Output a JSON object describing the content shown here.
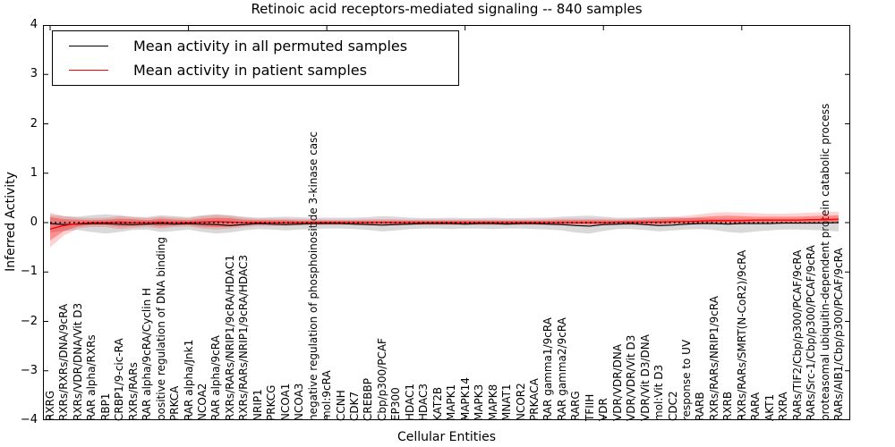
{
  "figure": {
    "title": "Retinoic acid receptors-mediated signaling -- 840 samples",
    "xlabel": "Cellular Entities",
    "ylabel": "Inferred Activity"
  },
  "legend": {
    "items": [
      {
        "label": "Mean activity in all permuted samples",
        "color": "#000000"
      },
      {
        "label": "Mean activity in patient samples",
        "color": "#ff0000"
      }
    ]
  },
  "chart_data": {
    "type": "line",
    "title": "Retinoic acid receptors-mediated signaling -- 840 samples",
    "xlabel": "Cellular Entities",
    "ylabel": "Inferred Activity",
    "ylim": [
      -4,
      4
    ],
    "yticks": [
      4,
      3,
      2,
      1,
      0,
      -1,
      -2,
      -3,
      -4
    ],
    "ytick_labels": [
      "4",
      "3",
      "2",
      "1",
      "0",
      "−1",
      "−2",
      "−3",
      "−4"
    ],
    "grid": false,
    "legend_position": "upper left",
    "zero_line_style": "dotted",
    "categories": [
      "RXRG",
      "RXRs/RXRs/DNA/9cRA",
      "RXRs/VDR/DNA/Vit D3",
      "RAR alpha/RXRs",
      "RBP1",
      "CRBP1/9-cic-RA",
      "RXRs/RARs",
      "RAR alpha/9cRA/Cyclin H",
      "positive regulation of DNA binding",
      "PRKCA",
      "RAR alpha/Jnk1",
      "NCOA2",
      "RAR alpha/9cRA",
      "RXRs/RARs/NRIP1/9cRA/HDAC1",
      "RXRs/RARs/NRIP1/9cRA/HDAC3",
      "NRIP1",
      "PRKCG",
      "NCOA1",
      "NCOA3",
      "negative regulation of phosphoinositide 3-kinase casc",
      "mol:9cRA",
      "CCNH",
      "CDK7",
      "CREBBP",
      "Cbp/p300/PCAF",
      "EP300",
      "HDAC1",
      "HDAC3",
      "KAT2B",
      "MAPK1",
      "MAPK14",
      "MAPK3",
      "MAPK8",
      "MNAT1",
      "NCOR2",
      "PRKACA",
      "RAR gamma1/9cRA",
      "RAR gamma2/9cRA",
      "RARG",
      "TFIIH",
      "VDR",
      "VDR/VDR/DNA",
      "VDR/VDR/Vit D3",
      "VDR/Vit D3/DNA",
      "mol:Vit D3",
      "CDC2",
      "response to UV",
      "RARB",
      "RXRs/RARs/NRIP1/9cRA",
      "RXRB",
      "RXRs/RARs/SMRT(N-CoR2)/9cRA",
      "RARA",
      "AKT1",
      "RXRA",
      "RARs/TIF2/Cbp/p300/PCAF/9cRA",
      "RARs/Src-1/Cbp/p300/PCAF/9cRA",
      "proteasomal ubiquitin-dependent protein catabolic process",
      "RARs/AIB1/Cbp/p300/PCAF/9cRA"
    ],
    "series": [
      {
        "name": "Mean activity in all permuted samples",
        "color": "#000000",
        "values": [
          -0.02,
          -0.04,
          -0.03,
          -0.02,
          -0.02,
          -0.03,
          -0.04,
          -0.03,
          -0.02,
          -0.03,
          -0.02,
          -0.03,
          -0.04,
          -0.06,
          -0.04,
          -0.02,
          -0.03,
          -0.04,
          -0.03,
          -0.02,
          -0.02,
          -0.02,
          -0.03,
          -0.04,
          -0.05,
          -0.04,
          -0.03,
          -0.02,
          -0.02,
          -0.02,
          -0.03,
          -0.02,
          -0.02,
          -0.03,
          -0.02,
          -0.02,
          -0.03,
          -0.04,
          -0.06,
          -0.07,
          -0.04,
          -0.03,
          -0.02,
          -0.04,
          -0.06,
          -0.05,
          -0.03,
          -0.02,
          -0.02,
          -0.03,
          -0.02,
          -0.02,
          -0.02,
          -0.01,
          -0.01,
          -0.01,
          -0.01,
          0.0
        ]
      },
      {
        "name": "Mean activity in patient samples",
        "color": "#ff0000",
        "values": [
          -0.13,
          -0.06,
          -0.02,
          0.0,
          0.0,
          0.01,
          0.0,
          0.0,
          0.01,
          0.0,
          0.0,
          0.01,
          0.02,
          0.01,
          0.0,
          0.0,
          0.0,
          0.0,
          0.0,
          0.0,
          0.0,
          0.0,
          0.0,
          0.0,
          0.0,
          0.0,
          0.0,
          0.0,
          0.0,
          0.0,
          0.0,
          0.0,
          0.0,
          0.0,
          0.0,
          0.0,
          0.0,
          0.0,
          0.0,
          0.0,
          0.0,
          0.01,
          0.01,
          0.01,
          0.01,
          0.02,
          0.02,
          0.03,
          0.04,
          0.04,
          0.04,
          0.05,
          0.05,
          0.05,
          0.05,
          0.06,
          0.06,
          0.07
        ]
      }
    ],
    "bands": [
      {
        "name": "permuted-samples-range",
        "color": "#808080",
        "opacity": 0.3,
        "low": [
          -0.2,
          -0.17,
          -0.15,
          -0.19,
          -0.22,
          -0.19,
          -0.15,
          -0.14,
          -0.19,
          -0.17,
          -0.14,
          -0.19,
          -0.22,
          -0.2,
          -0.16,
          -0.13,
          -0.14,
          -0.16,
          -0.14,
          -0.13,
          -0.12,
          -0.12,
          -0.13,
          -0.15,
          -0.18,
          -0.16,
          -0.13,
          -0.12,
          -0.12,
          -0.13,
          -0.12,
          -0.12,
          -0.13,
          -0.12,
          -0.12,
          -0.13,
          -0.14,
          -0.16,
          -0.2,
          -0.22,
          -0.17,
          -0.13,
          -0.13,
          -0.15,
          -0.18,
          -0.16,
          -0.14,
          -0.13,
          -0.15,
          -0.19,
          -0.21,
          -0.18,
          -0.16,
          -0.14,
          -0.14,
          -0.15,
          -0.16,
          -0.18
        ],
        "high": [
          0.16,
          0.13,
          0.12,
          0.15,
          0.17,
          0.15,
          0.12,
          0.11,
          0.15,
          0.13,
          0.11,
          0.15,
          0.17,
          0.15,
          0.12,
          0.1,
          0.11,
          0.12,
          0.11,
          0.1,
          0.1,
          0.1,
          0.1,
          0.11,
          0.13,
          0.12,
          0.1,
          0.09,
          0.09,
          0.1,
          0.09,
          0.09,
          0.1,
          0.09,
          0.09,
          0.1,
          0.1,
          0.12,
          0.13,
          0.14,
          0.12,
          0.1,
          0.1,
          0.11,
          0.12,
          0.11,
          0.1,
          0.09,
          0.08,
          0.08,
          0.08,
          0.07,
          0.07,
          0.06,
          0.06,
          0.06,
          0.07,
          0.08
        ]
      },
      {
        "name": "patient-samples-range-outer",
        "color": "#ff0000",
        "opacity": 0.18,
        "low": [
          -0.5,
          -0.26,
          -0.12,
          -0.09,
          -0.09,
          -0.13,
          -0.11,
          -0.09,
          -0.12,
          -0.09,
          -0.08,
          -0.12,
          -0.14,
          -0.12,
          -0.09,
          -0.07,
          -0.07,
          -0.07,
          -0.06,
          -0.06,
          -0.05,
          -0.05,
          -0.05,
          -0.06,
          -0.06,
          -0.06,
          -0.05,
          -0.05,
          -0.05,
          -0.05,
          -0.05,
          -0.05,
          -0.05,
          -0.05,
          -0.05,
          -0.05,
          -0.05,
          -0.06,
          -0.06,
          -0.06,
          -0.06,
          -0.05,
          -0.05,
          -0.05,
          -0.05,
          -0.04,
          -0.04,
          -0.04,
          -0.03,
          -0.03,
          -0.03,
          -0.02,
          -0.02,
          -0.02,
          -0.02,
          -0.02,
          -0.01,
          -0.01
        ],
        "high": [
          0.2,
          0.13,
          0.1,
          0.09,
          0.1,
          0.13,
          0.11,
          0.09,
          0.12,
          0.1,
          0.09,
          0.13,
          0.16,
          0.14,
          0.1,
          0.08,
          0.08,
          0.08,
          0.07,
          0.07,
          0.06,
          0.06,
          0.06,
          0.07,
          0.07,
          0.07,
          0.06,
          0.06,
          0.06,
          0.06,
          0.06,
          0.06,
          0.06,
          0.06,
          0.06,
          0.06,
          0.07,
          0.08,
          0.08,
          0.08,
          0.08,
          0.07,
          0.08,
          0.09,
          0.1,
          0.12,
          0.14,
          0.17,
          0.2,
          0.21,
          0.2,
          0.19,
          0.18,
          0.18,
          0.19,
          0.2,
          0.21,
          0.22
        ]
      },
      {
        "name": "patient-samples-range-inner",
        "color": "#ff0000",
        "opacity": 0.32,
        "low": [
          -0.36,
          -0.17,
          -0.08,
          -0.05,
          -0.05,
          -0.08,
          -0.07,
          -0.05,
          -0.08,
          -0.06,
          -0.05,
          -0.08,
          -0.09,
          -0.08,
          -0.06,
          -0.04,
          -0.04,
          -0.04,
          -0.04,
          -0.03,
          -0.03,
          -0.03,
          -0.03,
          -0.03,
          -0.03,
          -0.03,
          -0.03,
          -0.03,
          -0.03,
          -0.03,
          -0.03,
          -0.03,
          -0.03,
          -0.03,
          -0.03,
          -0.03,
          -0.03,
          -0.03,
          -0.03,
          -0.03,
          -0.03,
          -0.03,
          -0.03,
          -0.03,
          -0.03,
          -0.02,
          -0.02,
          -0.02,
          -0.01,
          -0.01,
          -0.01,
          0.0,
          0.0,
          0.0,
          0.0,
          0.0,
          0.01,
          0.01
        ],
        "high": [
          0.11,
          0.07,
          0.06,
          0.05,
          0.06,
          0.08,
          0.07,
          0.05,
          0.08,
          0.06,
          0.05,
          0.08,
          0.1,
          0.09,
          0.06,
          0.05,
          0.05,
          0.05,
          0.04,
          0.04,
          0.04,
          0.04,
          0.04,
          0.04,
          0.04,
          0.04,
          0.04,
          0.04,
          0.04,
          0.04,
          0.04,
          0.04,
          0.04,
          0.04,
          0.04,
          0.04,
          0.04,
          0.05,
          0.05,
          0.05,
          0.05,
          0.04,
          0.05,
          0.06,
          0.07,
          0.08,
          0.09,
          0.11,
          0.13,
          0.14,
          0.13,
          0.12,
          0.12,
          0.12,
          0.12,
          0.13,
          0.14,
          0.15
        ]
      }
    ]
  }
}
